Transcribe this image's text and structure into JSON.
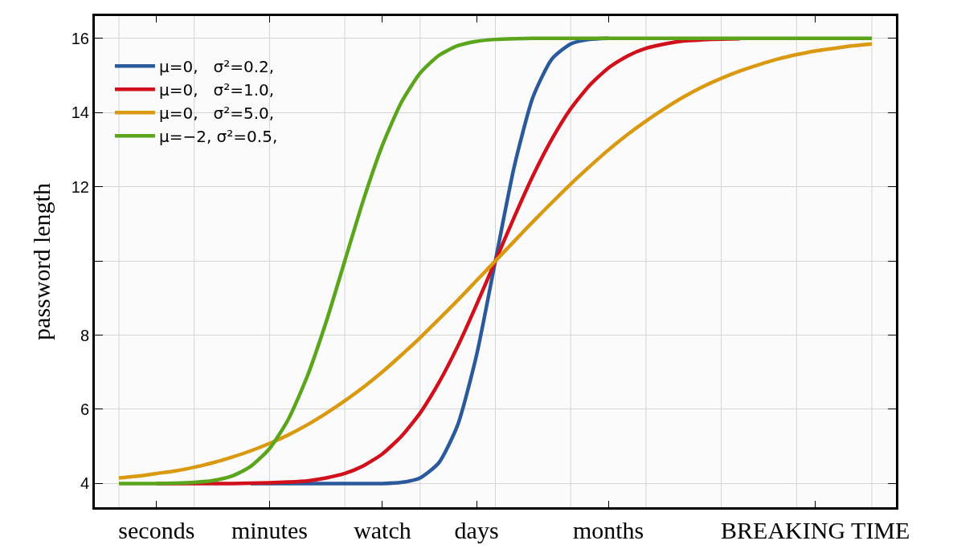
{
  "chart_data": {
    "type": "line",
    "ylabel": "password length",
    "categories": [
      null,
      null,
      "seconds",
      null,
      null,
      null,
      null,
      null,
      "minutes",
      null,
      null,
      null,
      null,
      null,
      "watch",
      null,
      null,
      null,
      null,
      "days",
      null,
      null,
      null,
      null,
      null,
      null,
      "months",
      null,
      null,
      null,
      null,
      null,
      null,
      null,
      null,
      null,
      null,
      "BREAKING TIME",
      null,
      null,
      null
    ],
    "ylim": [
      3.36,
      16.6
    ],
    "yticks": [
      4,
      6,
      8,
      {
        "value": 10,
        "label": null
      },
      12,
      14,
      16
    ],
    "grid": true,
    "legend": "top left",
    "marker": "none",
    "line_style": "solid",
    "series": [
      {
        "name": "μ=0,   σ²=0.2,",
        "color": "#2a5a9c",
        "values": [
          null,
          null,
          null,
          null,
          null,
          null,
          null,
          4,
          4,
          4,
          4,
          4,
          4,
          4,
          4,
          4.03,
          4.15,
          4.56,
          5.58,
          7.46,
          10,
          12.54,
          14.42,
          15.44,
          15.85,
          15.97,
          16,
          null,
          null,
          null,
          null,
          null,
          null,
          null,
          null,
          null,
          null,
          null,
          null,
          null,
          null
        ]
      },
      {
        "name": "μ=0,   σ²=1.0,",
        "color": "#d0101a",
        "values": [
          null,
          null,
          4,
          4,
          4,
          4,
          4,
          4.01,
          4.02,
          4.04,
          4.07,
          4.15,
          4.27,
          4.48,
          4.8,
          5.27,
          5.9,
          6.72,
          7.7,
          8.82,
          10,
          11.18,
          12.3,
          13.28,
          14.1,
          14.73,
          15.2,
          15.52,
          15.73,
          15.85,
          15.93,
          15.96,
          15.98,
          15.99,
          null,
          null,
          null,
          null,
          null,
          null,
          null
        ]
      },
      {
        "name": "μ=0,   σ²=5.0,",
        "color": "#d99a12",
        "values": [
          4.15,
          4.2,
          4.27,
          4.34,
          4.44,
          4.56,
          4.71,
          4.88,
          5.08,
          5.31,
          5.58,
          5.89,
          6.23,
          6.6,
          7.01,
          7.46,
          7.93,
          8.43,
          8.94,
          9.47,
          10,
          10.53,
          11.06,
          11.57,
          12.07,
          12.54,
          12.99,
          13.4,
          13.77,
          14.11,
          14.42,
          14.69,
          14.92,
          15.12,
          15.29,
          15.44,
          15.56,
          15.66,
          15.73,
          15.8,
          15.85
        ]
      },
      {
        "name": "μ=−2, σ²=0.5,",
        "color": "#5aa51c",
        "values": [
          4,
          4,
          4,
          4.01,
          4.03,
          4.08,
          4.2,
          4.46,
          4.94,
          5.73,
          6.88,
          8.34,
          10,
          11.66,
          13.12,
          14.27,
          15.06,
          15.54,
          15.8,
          15.92,
          15.97,
          15.99,
          16,
          16,
          16,
          16,
          16,
          16,
          16,
          16,
          16,
          16,
          16,
          16,
          16,
          16,
          16,
          16,
          16,
          16,
          16
        ]
      }
    ]
  }
}
